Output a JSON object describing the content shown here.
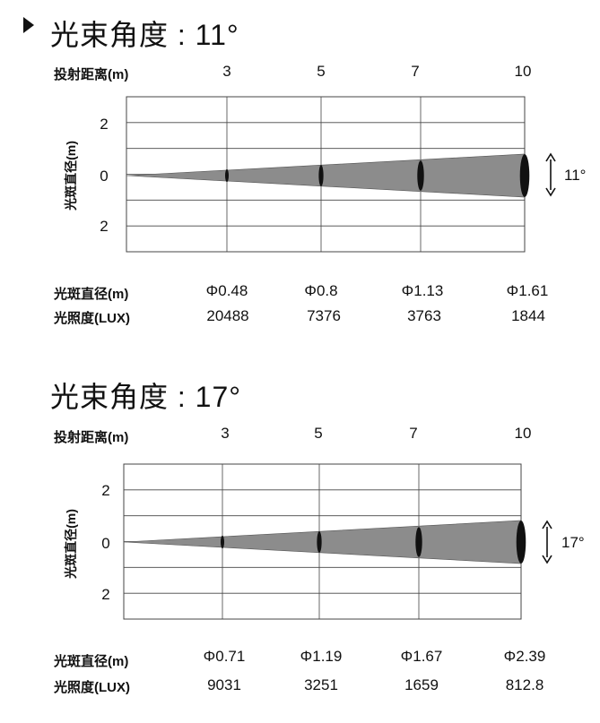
{
  "labels": {
    "distance_row": "投射距离(m)",
    "diameter_row": "光斑直径(m)",
    "illuminance_row": "光照度(LUX)",
    "y_axis": "光斑直径(m)"
  },
  "colors": {
    "beam": "#8c8c8c",
    "grid": "#444444",
    "ellipse": "#111111"
  },
  "chart_data": [
    {
      "type": "table",
      "title": "光束角度 : 11°",
      "angle_label": "11°",
      "distances": [
        "3",
        "5",
        "7",
        "10"
      ],
      "distance_values": [
        3,
        5,
        7,
        10
      ],
      "y_ticks": [
        "2",
        "0",
        "2"
      ],
      "diameters": [
        "Φ0.48",
        "Φ0.8",
        "Φ1.13",
        "Φ1.61"
      ],
      "diameter_values": [
        0.48,
        0.8,
        1.13,
        1.61
      ],
      "illuminance": [
        "20488",
        "7376",
        "3763",
        "1844"
      ]
    },
    {
      "type": "table",
      "title": "光束角度 : 17°",
      "angle_label": "17°",
      "distances": [
        "3",
        "5",
        "7",
        "10"
      ],
      "distance_values": [
        3,
        5,
        7,
        10
      ],
      "y_ticks": [
        "2",
        "0",
        "2"
      ],
      "diameters": [
        "Φ0.71",
        "Φ1.19",
        "Φ1.67",
        "Φ2.39"
      ],
      "diameter_values": [
        0.71,
        1.19,
        1.67,
        2.39
      ],
      "illuminance": [
        "9031",
        "3251",
        "1659",
        "812.8"
      ]
    }
  ]
}
